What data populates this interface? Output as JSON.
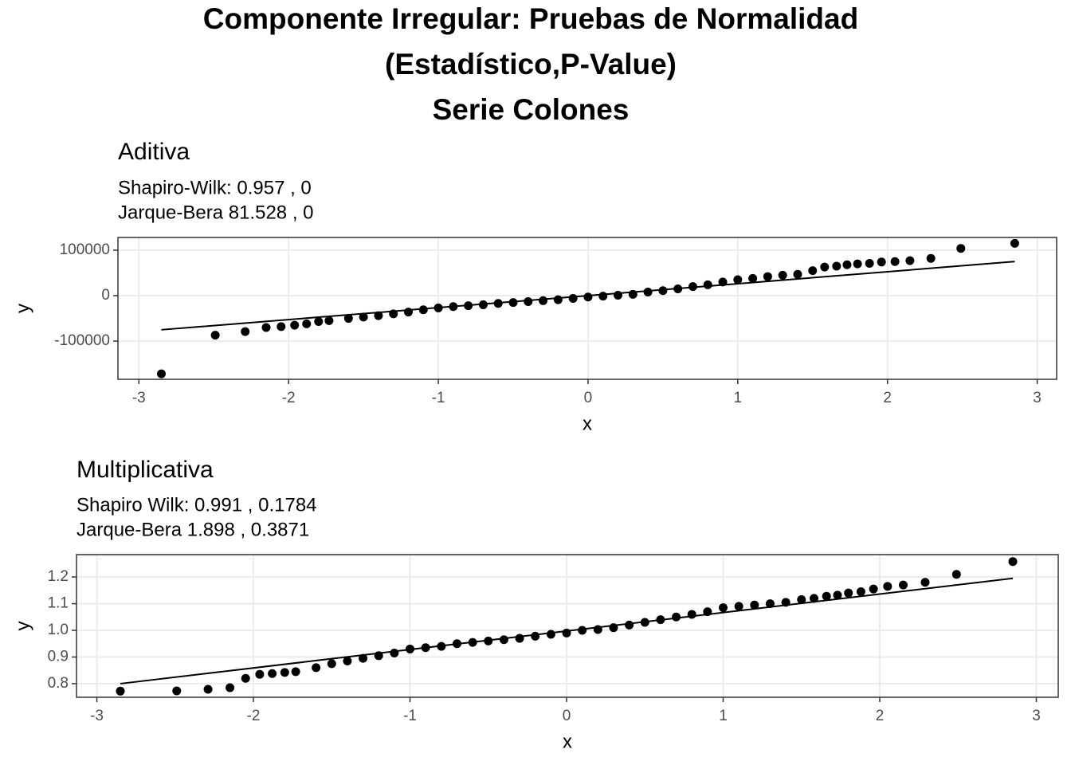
{
  "page_title": [
    "Componente Irregular: Pruebas de Normalidad",
    "(Estadístico,P-Value)",
    "Serie  Colones"
  ],
  "chart_data": [
    {
      "type": "scatter",
      "title": "Aditiva",
      "subtitle": [
        "Shapiro-Wilk: 0.957 , 0",
        "Jarque-Bera 81.528 , 0"
      ],
      "xlabel": "x",
      "ylabel": "y",
      "xlim": [
        -3.14,
        3.13
      ],
      "ylim": [
        -184000,
        128000
      ],
      "xticks": [
        -3,
        -2,
        -1,
        0,
        1,
        2,
        3
      ],
      "yticks": [
        -100000,
        0,
        100000
      ],
      "grid": true,
      "color": "#000000",
      "x": [
        -2.85,
        -2.49,
        -2.29,
        -2.15,
        -2.05,
        -1.96,
        -1.88,
        -1.8,
        -1.73,
        -1.6,
        -1.5,
        -1.4,
        -1.3,
        -1.2,
        -1.1,
        -1.0,
        -0.9,
        -0.8,
        -0.7,
        -0.6,
        -0.5,
        -0.4,
        -0.3,
        -0.2,
        -0.1,
        0,
        0.1,
        0.2,
        0.3,
        0.4,
        0.5,
        0.6,
        0.7,
        0.8,
        0.9,
        1.0,
        1.1,
        1.2,
        1.3,
        1.4,
        1.5,
        1.58,
        1.66,
        1.73,
        1.8,
        1.88,
        1.96,
        2.05,
        2.15,
        2.29,
        2.49,
        2.85
      ],
      "values": [
        -172000,
        -87000,
        -79000,
        -70000,
        -68000,
        -65000,
        -62000,
        -57000,
        -55000,
        -50000,
        -47000,
        -44000,
        -40000,
        -36000,
        -31000,
        -27000,
        -24000,
        -22000,
        -20000,
        -17000,
        -15000,
        -13000,
        -11000,
        -9000,
        -6000,
        -3000,
        -1000,
        1000,
        3000,
        8000,
        11000,
        15000,
        20000,
        24000,
        30000,
        35000,
        38000,
        42000,
        45000,
        47000,
        55000,
        63000,
        65000,
        68000,
        70000,
        71000,
        74000,
        75000,
        77000,
        82000,
        104000,
        115000
      ],
      "reference_line": {
        "x": [
          -2.85,
          2.85
        ],
        "values": [
          -75000,
          75000
        ]
      }
    },
    {
      "type": "scatter",
      "title": "Multiplicativa",
      "subtitle": [
        "Shapiro Wilk: 0.991 , 0.1784",
        "Jarque-Bera 1.898 , 0.3871"
      ],
      "xlabel": "x",
      "ylabel": "y",
      "xlim": [
        -3.13,
        3.14
      ],
      "ylim": [
        0.749,
        1.284
      ],
      "xticks": [
        -3,
        -2,
        -1,
        0,
        1,
        2,
        3
      ],
      "yticks": [
        0.8,
        0.9,
        {
          "value": 1,
          "label": "1.0"
        },
        1.1,
        1.2
      ],
      "grid": true,
      "color": "#000000",
      "x": [
        -2.85,
        -2.49,
        -2.29,
        -2.15,
        -2.05,
        -1.96,
        -1.88,
        -1.8,
        -1.73,
        -1.6,
        -1.5,
        -1.4,
        -1.3,
        -1.2,
        -1.1,
        -1.0,
        -0.9,
        -0.8,
        -0.7,
        -0.6,
        -0.5,
        -0.4,
        -0.3,
        -0.2,
        -0.1,
        0,
        0.1,
        0.2,
        0.3,
        0.4,
        0.5,
        0.6,
        0.7,
        0.8,
        0.9,
        1.0,
        1.1,
        1.2,
        1.3,
        1.4,
        1.5,
        1.58,
        1.66,
        1.73,
        1.8,
        1.88,
        1.96,
        2.05,
        2.15,
        2.29,
        2.49,
        2.85
      ],
      "values": [
        0.772,
        0.773,
        0.779,
        0.785,
        0.82,
        0.835,
        0.838,
        0.842,
        0.845,
        0.86,
        0.875,
        0.885,
        0.895,
        0.905,
        0.915,
        0.93,
        0.935,
        0.94,
        0.95,
        0.955,
        0.96,
        0.965,
        0.97,
        0.978,
        0.985,
        0.99,
        1.0,
        1.003,
        1.01,
        1.02,
        1.03,
        1.04,
        1.05,
        1.06,
        1.07,
        1.085,
        1.09,
        1.095,
        1.1,
        1.105,
        1.115,
        1.12,
        1.128,
        1.132,
        1.14,
        1.145,
        1.155,
        1.165,
        1.17,
        1.18,
        1.21,
        1.258
      ],
      "reference_line": {
        "x": [
          -2.85,
          2.85
        ],
        "values": [
          0.8,
          1.195
        ]
      }
    }
  ]
}
